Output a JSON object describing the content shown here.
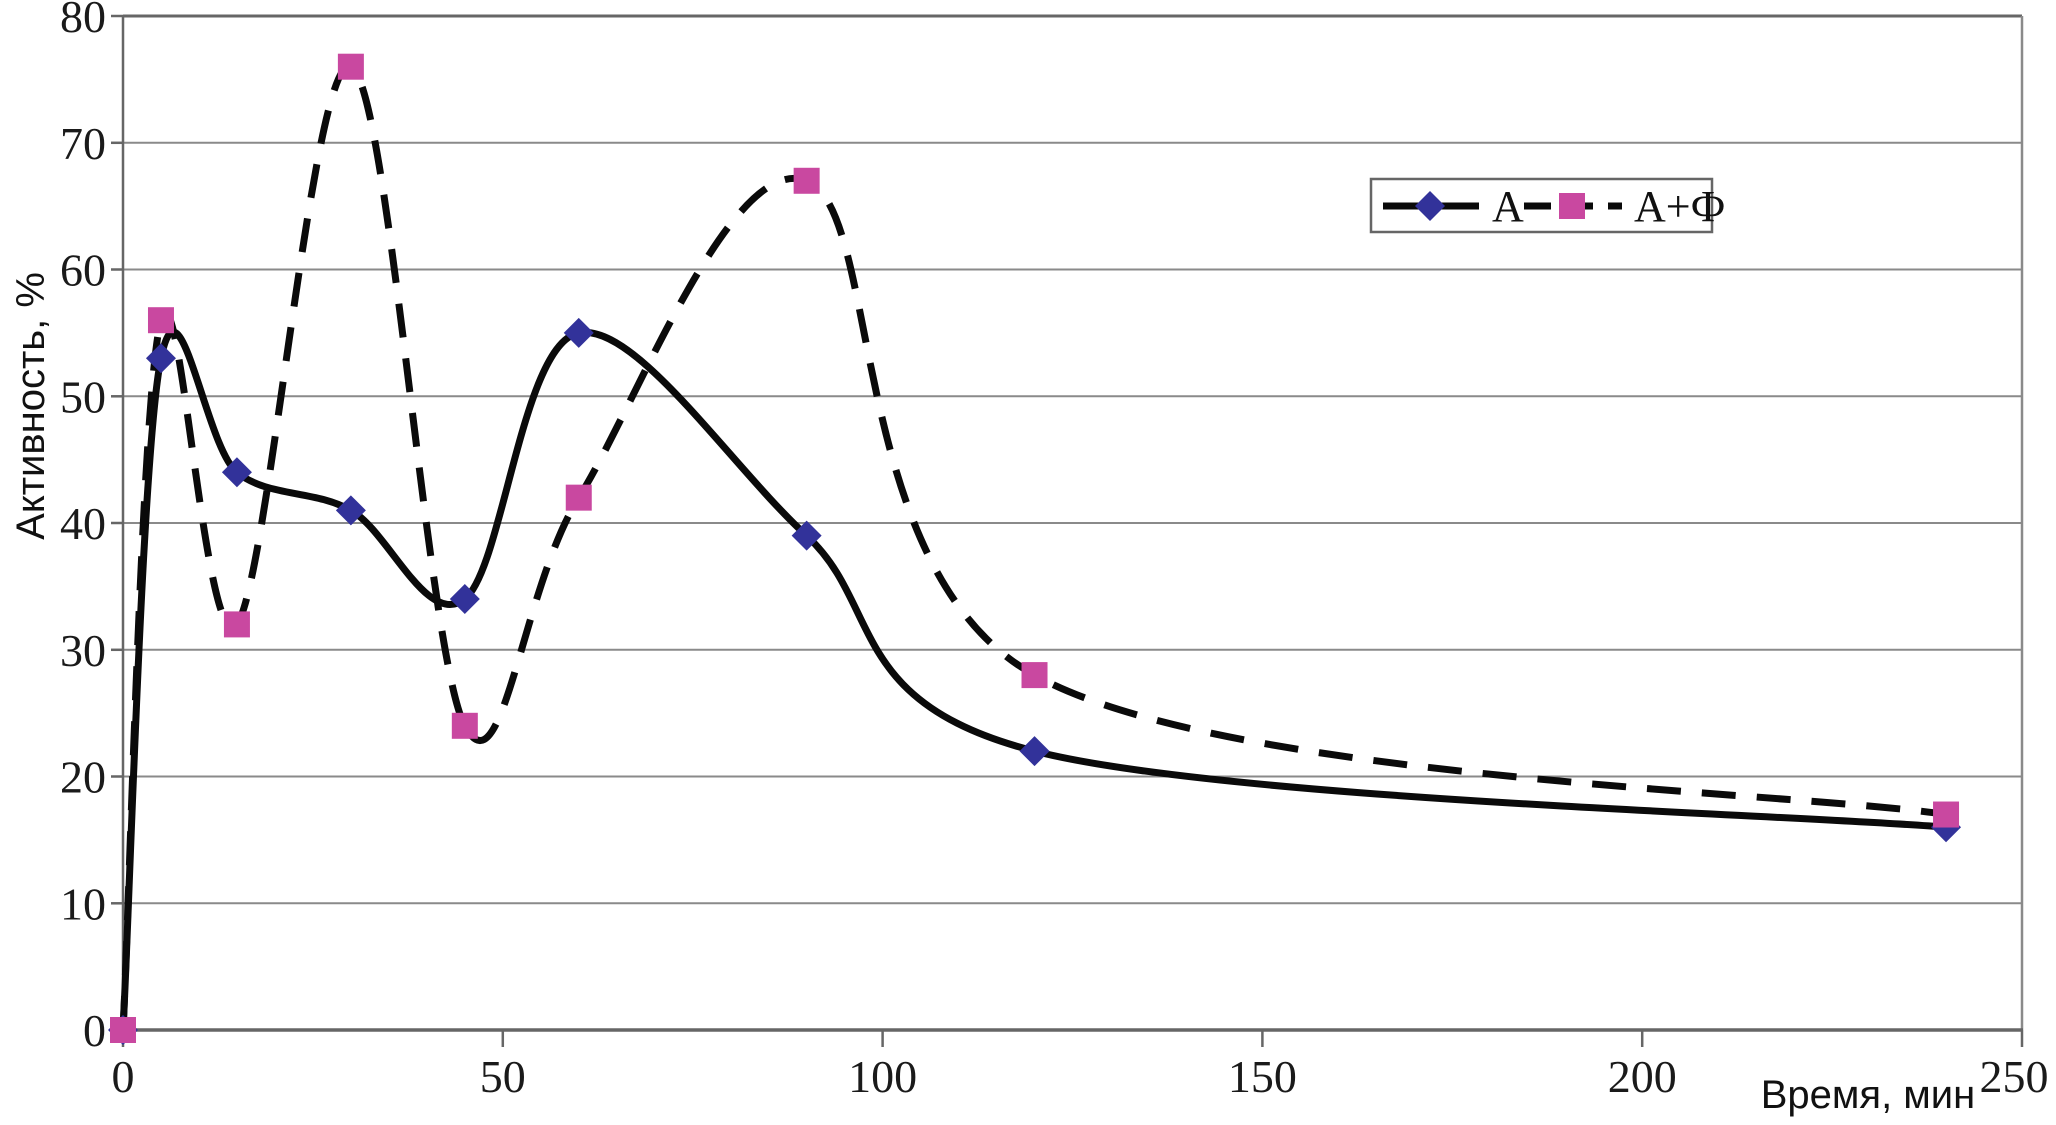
{
  "chart_data": {
    "type": "line",
    "title": "",
    "xlabel": "Время, мин",
    "ylabel": "Активность, %",
    "xlim": [
      0,
      250
    ],
    "ylim": [
      0,
      80
    ],
    "x_ticks": [
      0,
      50,
      100,
      150,
      200,
      250
    ],
    "y_ticks": [
      0,
      10,
      20,
      30,
      40,
      50,
      60,
      70,
      80
    ],
    "grid": "horizontal",
    "legend_position": "top-right-inside",
    "x": [
      0,
      5,
      15,
      30,
      45,
      60,
      90,
      120,
      240
    ],
    "series": [
      {
        "name": "А",
        "line_style": "solid",
        "line_color": "#0a0a0a",
        "marker": "diamond",
        "marker_color": "#32329A",
        "values": [
          0,
          53,
          44,
          41,
          34,
          55,
          39,
          22,
          16
        ]
      },
      {
        "name": "А+Ф",
        "line_style": "dashed",
        "line_color": "#0a0a0a",
        "marker": "square",
        "marker_color": "#C948A0",
        "values": [
          0,
          56,
          32,
          76,
          24,
          42,
          67,
          28,
          17
        ]
      }
    ]
  },
  "colors": {
    "background": "#ffffff",
    "grid": "#8a8a8a",
    "axis_border": "#666666",
    "text": "#1a1a1a"
  }
}
